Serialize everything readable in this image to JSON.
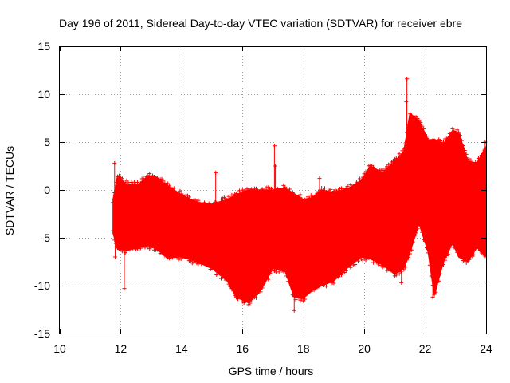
{
  "chart_data": {
    "type": "scatter",
    "title": "Day 196 of 2011, Sidereal Day-to-day VTEC variation (SDTVAR) for receiver ebre",
    "xlabel": "GPS time / hours",
    "ylabel": "SDTVAR / TECUs",
    "xlim": [
      10,
      24
    ],
    "ylim": [
      -15,
      15
    ],
    "xticks": [
      10,
      12,
      14,
      16,
      18,
      20,
      22,
      24
    ],
    "yticks": [
      -15,
      -10,
      -5,
      0,
      5,
      10,
      15
    ],
    "grid": true,
    "marker": "+",
    "color": "#ff0000",
    "envelope": {
      "x": [
        11.75,
        11.9,
        12.2,
        12.6,
        12.9,
        13.2,
        13.5,
        14.0,
        14.5,
        15.0,
        15.5,
        15.8,
        16.2,
        16.6,
        17.0,
        17.4,
        17.7,
        18.0,
        18.3,
        18.6,
        19.0,
        19.5,
        19.9,
        20.2,
        20.6,
        21.0,
        21.3,
        21.5,
        21.8,
        22.1,
        22.3,
        22.6,
        22.9,
        23.1,
        23.4,
        23.7,
        24.0
      ],
      "upper": [
        -1.0,
        1.5,
        0.5,
        0.6,
        1.5,
        1.3,
        0.5,
        -0.5,
        -1.3,
        -1.5,
        -1.0,
        -0.5,
        0.0,
        0.0,
        0.0,
        0.2,
        -0.4,
        -1.0,
        -0.8,
        0.0,
        -0.3,
        0.2,
        1.0,
        2.5,
        1.8,
        3.0,
        4.0,
        8.0,
        7.2,
        5.2,
        5.3,
        4.8,
        6.2,
        6.0,
        3.0,
        2.8,
        4.5
      ],
      "lower": [
        -4.5,
        -6.2,
        -6.3,
        -6.0,
        -5.8,
        -6.2,
        -7.0,
        -7.0,
        -7.5,
        -8.2,
        -9.5,
        -11.2,
        -11.8,
        -10.5,
        -8.2,
        -8.5,
        -11.2,
        -11.3,
        -10.5,
        -10.0,
        -9.5,
        -8.0,
        -7.0,
        -7.2,
        -7.8,
        -8.8,
        -8.2,
        -6.5,
        -3.5,
        -6.5,
        -11.0,
        -7.5,
        -5.5,
        -7.0,
        -7.5,
        -6.0,
        -7.0
      ]
    },
    "outliers": [
      {
        "x": 11.8,
        "y": 2.8
      },
      {
        "x": 11.82,
        "y": -7.0
      },
      {
        "x": 12.12,
        "y": -10.3
      },
      {
        "x": 12.2,
        "y": 1.0
      },
      {
        "x": 15.12,
        "y": 1.8
      },
      {
        "x": 17.05,
        "y": 4.6
      },
      {
        "x": 17.08,
        "y": 2.5
      },
      {
        "x": 17.7,
        "y": -12.6
      },
      {
        "x": 18.53,
        "y": 1.2
      },
      {
        "x": 21.4,
        "y": 11.6
      },
      {
        "x": 21.38,
        "y": 9.2
      },
      {
        "x": 21.22,
        "y": -9.7
      },
      {
        "x": 22.25,
        "y": -11.2
      },
      {
        "x": 23.97,
        "y": 5.0
      }
    ]
  }
}
